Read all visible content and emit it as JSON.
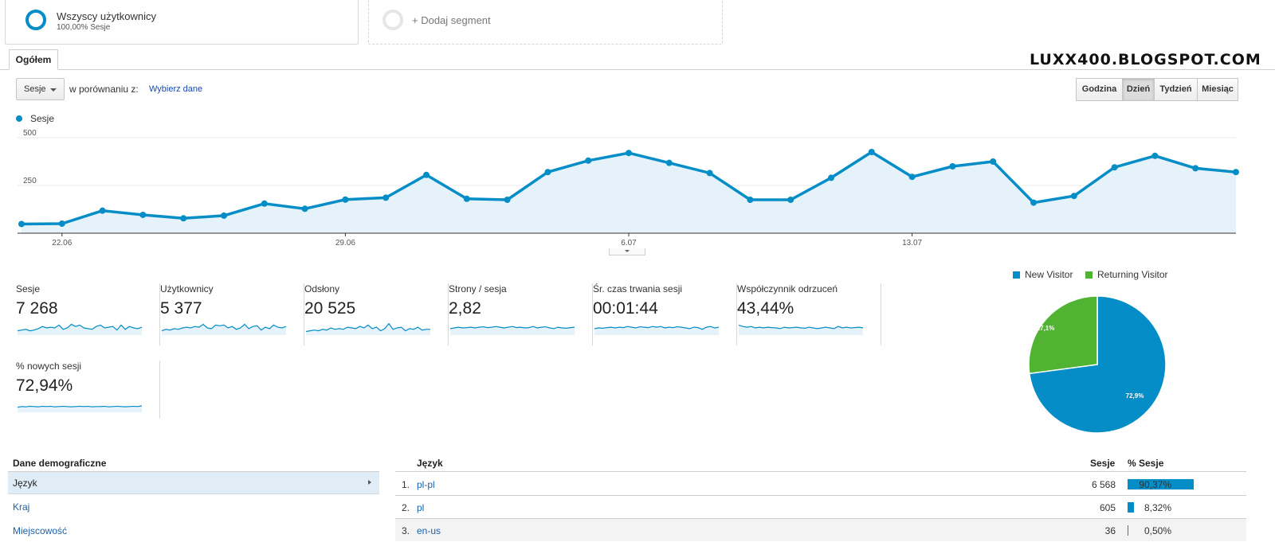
{
  "segments": {
    "active": {
      "title": "Wszyscy użytkownicy",
      "subtitle": "100,00% Sesje"
    },
    "add_label": "+ Dodaj segment"
  },
  "tab": {
    "label": "Ogółem"
  },
  "watermark": "LUXX400.BLOGSPOT.COM",
  "controls": {
    "metric_select": "Sesje",
    "compare_label": "w porównaniu z:",
    "compare_link": "Wybierz dane",
    "granularity": [
      "Godzina",
      "Dzień",
      "Tydzień",
      "Miesiąc"
    ],
    "granularity_active": "Dzień"
  },
  "colors": {
    "accent": "#058dc7",
    "returning": "#50b432",
    "link": "#1a62b0"
  },
  "chart_data": {
    "type": "area",
    "series": [
      {
        "name": "Sesje",
        "values": [
          48,
          50,
          118,
          96,
          78,
          92,
          155,
          128,
          176,
          186,
          305,
          180,
          175,
          320,
          380,
          420,
          368,
          315,
          175,
          175,
          290,
          425,
          295,
          350,
          375,
          160,
          195,
          345,
          405,
          340,
          320
        ]
      }
    ],
    "x_ticks": [
      {
        "index": 1,
        "label": "22.06"
      },
      {
        "index": 8,
        "label": "29.06"
      },
      {
        "index": 15,
        "label": "6.07"
      },
      {
        "index": 22,
        "label": "13.07"
      }
    ],
    "y_ticks": [
      250,
      500
    ],
    "ylim": [
      0,
      500
    ],
    "grid": true
  },
  "metrics": [
    {
      "label": "Sesje",
      "value": "7 268",
      "spark": [
        0.3,
        0.35,
        0.4,
        0.3,
        0.35,
        0.45,
        0.6,
        0.5,
        0.55,
        0.5,
        0.7,
        0.4,
        0.5,
        0.75,
        0.6,
        0.7,
        0.5,
        0.45,
        0.4,
        0.6,
        0.7,
        0.5,
        0.55,
        0.6,
        0.35,
        0.7,
        0.4,
        0.6,
        0.5,
        0.45,
        0.55
      ]
    },
    {
      "label": "Użytkownicy",
      "value": "5 377",
      "spark": [
        0.3,
        0.4,
        0.35,
        0.45,
        0.4,
        0.5,
        0.55,
        0.5,
        0.6,
        0.55,
        0.75,
        0.5,
        0.45,
        0.7,
        0.65,
        0.7,
        0.5,
        0.6,
        0.4,
        0.5,
        0.75,
        0.45,
        0.6,
        0.65,
        0.35,
        0.55,
        0.45,
        0.7,
        0.55,
        0.5,
        0.6
      ]
    },
    {
      "label": "Odsłony",
      "value": "20 525",
      "spark": [
        0.25,
        0.3,
        0.35,
        0.3,
        0.4,
        0.35,
        0.5,
        0.4,
        0.45,
        0.4,
        0.55,
        0.5,
        0.45,
        0.6,
        0.5,
        0.7,
        0.45,
        0.55,
        0.3,
        0.45,
        0.8,
        0.4,
        0.5,
        0.55,
        0.3,
        0.45,
        0.4,
        0.55,
        0.35,
        0.4,
        0.4
      ]
    },
    {
      "label": "Strony / sesja",
      "value": "2,82",
      "spark": [
        0.45,
        0.5,
        0.55,
        0.5,
        0.52,
        0.55,
        0.5,
        0.55,
        0.58,
        0.52,
        0.55,
        0.6,
        0.55,
        0.5,
        0.55,
        0.6,
        0.52,
        0.55,
        0.5,
        0.52,
        0.6,
        0.5,
        0.55,
        0.58,
        0.5,
        0.45,
        0.55,
        0.5,
        0.48,
        0.52,
        0.55
      ]
    },
    {
      "label": "Śr. czas trwania sesji",
      "value": "00:01:44",
      "spark": [
        0.45,
        0.5,
        0.48,
        0.52,
        0.55,
        0.5,
        0.55,
        0.52,
        0.6,
        0.55,
        0.5,
        0.58,
        0.55,
        0.52,
        0.6,
        0.55,
        0.6,
        0.5,
        0.55,
        0.52,
        0.58,
        0.55,
        0.5,
        0.45,
        0.55,
        0.52,
        0.4,
        0.55,
        0.6,
        0.5,
        0.55
      ]
    },
    {
      "label": "Współczynnik odrzuceń",
      "value": "43,44%",
      "spark": [
        0.7,
        0.6,
        0.55,
        0.6,
        0.5,
        0.55,
        0.5,
        0.55,
        0.52,
        0.5,
        0.45,
        0.55,
        0.5,
        0.52,
        0.55,
        0.5,
        0.48,
        0.55,
        0.5,
        0.45,
        0.5,
        0.55,
        0.5,
        0.45,
        0.6,
        0.5,
        0.55,
        0.5,
        0.52,
        0.55,
        0.5
      ]
    },
    {
      "label": "% nowych sesji",
      "value": "72,94%",
      "spark": [
        0.35,
        0.4,
        0.38,
        0.42,
        0.4,
        0.38,
        0.42,
        0.4,
        0.42,
        0.38,
        0.4,
        0.42,
        0.4,
        0.38,
        0.4,
        0.42,
        0.4,
        0.42,
        0.38,
        0.4,
        0.4,
        0.42,
        0.38,
        0.4,
        0.42,
        0.4,
        0.38,
        0.4,
        0.42,
        0.4,
        0.45
      ]
    }
  ],
  "pie_chart": {
    "type": "pie",
    "legend": [
      "New Visitor",
      "Returning Visitor"
    ],
    "slices": [
      {
        "name": "New Visitor",
        "value": 72.9,
        "label": "72,9%",
        "color": "#058dc7"
      },
      {
        "name": "Returning Visitor",
        "value": 27.1,
        "label": "27,1%",
        "color": "#50b432"
      }
    ]
  },
  "demographics": {
    "header": "Dane demograficzne",
    "items": [
      "Język",
      "Kraj",
      "Miejscowość"
    ],
    "active": "Język"
  },
  "table": {
    "headers": {
      "dimension": "Język",
      "sessions": "Sesje",
      "pct": "% Sesje"
    },
    "rows": [
      {
        "num": "1.",
        "lang": "pl-pl",
        "sessions": "6 568",
        "pct": "90,37%",
        "share": 0.9037
      },
      {
        "num": "2.",
        "lang": "pl",
        "sessions": "605",
        "pct": "8,32%",
        "share": 0.0832
      },
      {
        "num": "3.",
        "lang": "en-us",
        "sessions": "36",
        "pct": "0,50%",
        "share": 0.005
      }
    ]
  }
}
